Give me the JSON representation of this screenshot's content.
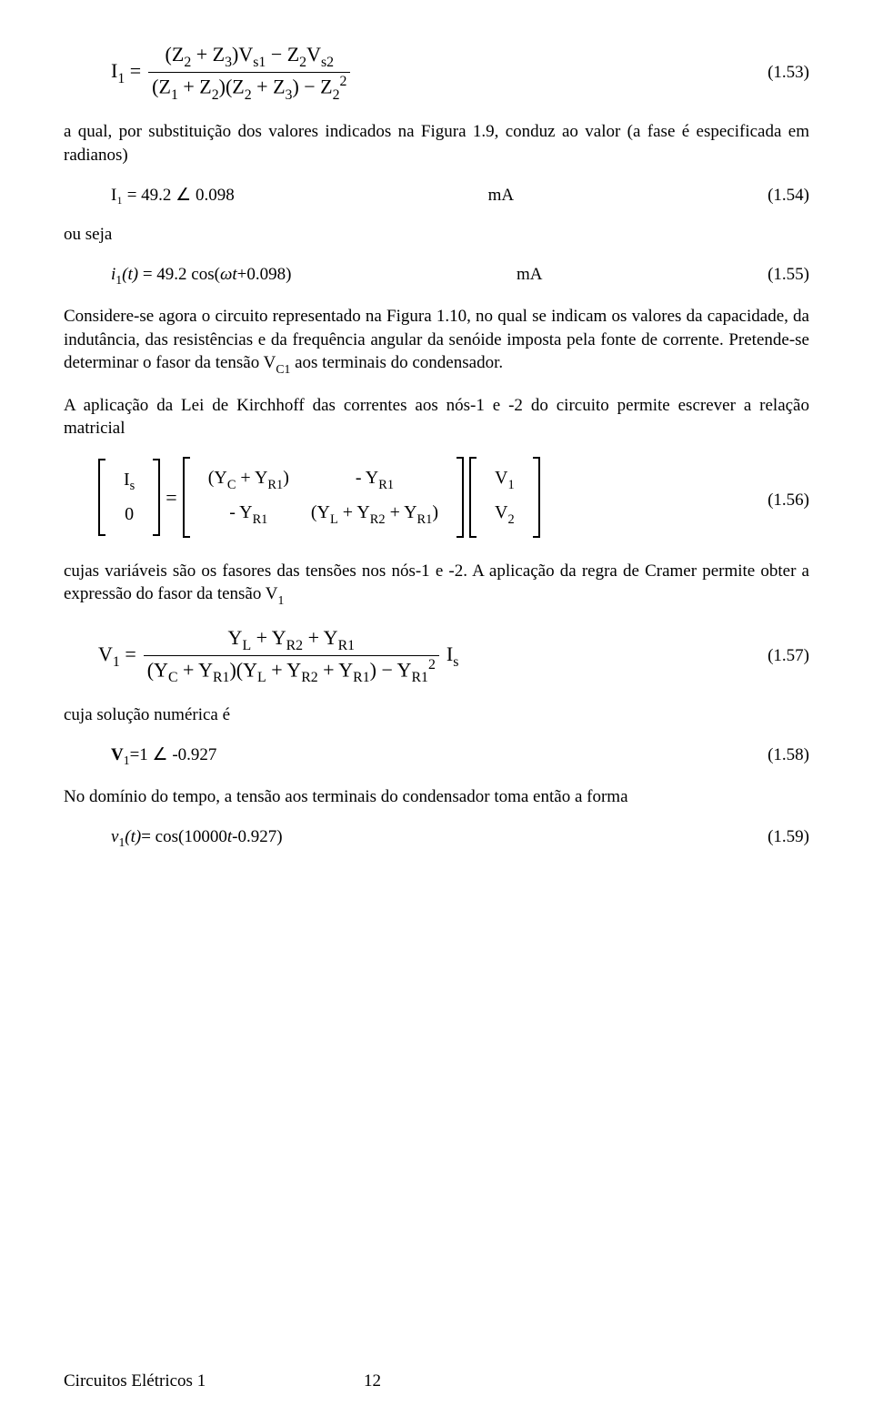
{
  "page": {
    "footer_title": "Circuitos Elétricos 1",
    "footer_page": "12"
  },
  "eq53": {
    "lhs": "I",
    "lhs_sub": "1",
    "eqsign": " = ",
    "num_a": "(Z",
    "num_a_sub": "2",
    "num_b": " + Z",
    "num_b_sub": "3",
    "num_c": ")V",
    "num_c_sub": "s1",
    "num_d": " − Z",
    "num_d_sub": "2",
    "num_e": "V",
    "num_e_sub": "s2",
    "den_a": "(Z",
    "den_a_sub": "1",
    "den_b": " + Z",
    "den_b_sub": "2",
    "den_c": ")(Z",
    "den_c_sub": "2",
    "den_d": " + Z",
    "den_d_sub": "3",
    "den_e": ") − Z",
    "den_e_sub": "2",
    "den_e_sup": "2",
    "num": "(1.53)"
  },
  "p1": "a qual, por substituição dos valores indicados na Figura 1.9, conduz ao valor (a fase é especificada em radianos)",
  "eq54": {
    "left": "I₁ = 49.2 ∠ 0.098",
    "mid": "mA",
    "num": "(1.54)"
  },
  "p_ou": "ou seja",
  "eq55": {
    "left_i": "i",
    "left_sub": "1",
    "left_t": "(t)",
    "left_eq": " = 49.2 cos(",
    "omega": "ω",
    "left_rest": "t+0.098)",
    "mid": "mA",
    "num": "(1.55)"
  },
  "p2_a": "Considere-se agora o circuito representado na Figura 1.10, no qual se indicam os valores da capacidade, da indutância, das resistências e da frequência angular da senóide imposta pela fonte de corrente. Pretende-se determinar o fasor da tensão V",
  "p2_sub": "C1",
  "p2_b": " aos terminais do condensador.",
  "p3": "A aplicação da Lei de Kirchhoff das correntes aos nós-1 e -2 do circuito permite escrever a relação matricial",
  "eq56": {
    "lvec_r1": "I",
    "lvec_r1_sub": "s",
    "lvec_r2": "0",
    "m11_a": "(Y",
    "m11_a_sub": "C",
    "m11_b": " + Y",
    "m11_b_sub": "R1",
    "m11_c": ")",
    "m12_a": "- Y",
    "m12_a_sub": "R1",
    "m21_a": "- Y",
    "m21_a_sub": "R1",
    "m22_a": "(Y",
    "m22_a_sub": "L",
    "m22_b": " + Y",
    "m22_b_sub": "R2",
    "m22_c": " + Y",
    "m22_c_sub": "R1",
    "m22_d": ")",
    "rvec_r1": "V",
    "rvec_r1_sub": "1",
    "rvec_r2": "V",
    "rvec_r2_sub": "2",
    "eq_sign": " = ",
    "num": "(1.56)"
  },
  "p4_a": "cujas variáveis são os fasores das tensões nos nós-1 e -2. A aplicação da regra de Cramer permite obter a expressão do fasor da tensão V",
  "p4_sub": "1",
  "eq57": {
    "lhs": "V",
    "lhs_sub": "1",
    "eq_sign": " = ",
    "num_a": "Y",
    "num_a_sub": "L",
    "num_b": " + Y",
    "num_b_sub": "R2",
    "num_c": " + Y",
    "num_c_sub": "R1",
    "den_a": "(Y",
    "den_a_sub": "C",
    "den_b": " + Y",
    "den_b_sub": "R1",
    "den_c": ")(Y",
    "den_c_sub": "L",
    "den_d": " + Y",
    "den_d_sub": "R2",
    "den_e": " + Y",
    "den_e_sub": "R1",
    "den_f": ") − Y",
    "den_f_sub": "R1",
    "den_f_sup": "2",
    "trail": "I",
    "trail_sub": "s",
    "num": "(1.57)"
  },
  "p5": "cuja solução numérica é",
  "eq58": {
    "left_v": "V",
    "left_sub": "1",
    "left_rest": "=1 ∠ -0.927",
    "num": "(1.58)"
  },
  "p6": "No domínio do tempo, a tensão aos terminais do condensador toma então a forma",
  "eq59": {
    "left_v": "v",
    "left_sub": "1",
    "left_t": "(t)",
    "left_rest": "= cos(10000",
    "left_it": "t",
    "left_end": "-0.927)",
    "num": "(1.59)"
  }
}
